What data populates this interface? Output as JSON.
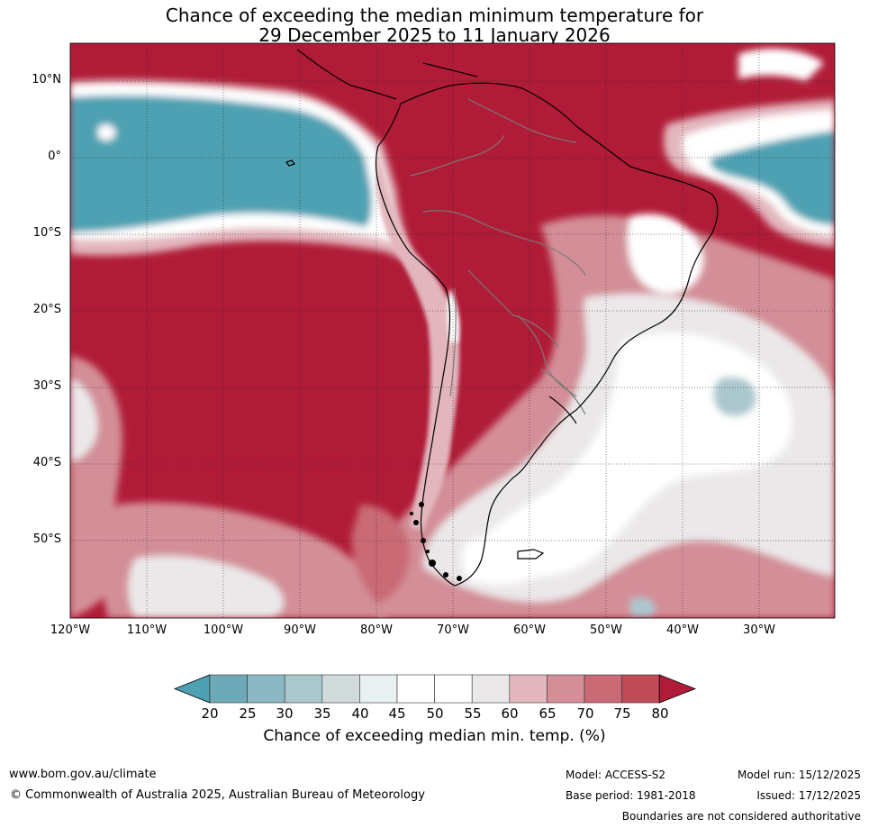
{
  "title": {
    "line1": "Chance of exceeding the median minimum temperature for",
    "line2": "29 December 2025 to 11 January 2026"
  },
  "map": {
    "extent": {
      "lon_min": -120,
      "lon_max": -20,
      "lat_min": -60,
      "lat_max": 15
    },
    "lat_labels": [
      "10°N",
      "0°",
      "10°S",
      "20°S",
      "30°S",
      "40°S",
      "50°S"
    ],
    "lon_labels": [
      "120°W",
      "110°W",
      "100°W",
      "90°W",
      "80°W",
      "70°W",
      "60°W",
      "50°W",
      "40°W",
      "30°W"
    ],
    "background_color": "#b01c37",
    "gridlines": true
  },
  "colorbar": {
    "colors": [
      "#4da1b3",
      "#6ea9b8",
      "#8cb8c6",
      "#abc7ce",
      "#d2dbdb",
      "#e9f0f2",
      "#ffffff",
      "#ffffff",
      "#ebe8e9",
      "#e3b6bd",
      "#d38e97",
      "#c96a75",
      "#bf4a58",
      "#b01c37"
    ],
    "ticks": [
      "20",
      "25",
      "30",
      "35",
      "40",
      "45",
      "50",
      "55",
      "60",
      "65",
      "70",
      "75",
      "80"
    ],
    "label": "Chance of exceeding median min. temp. (%)"
  },
  "footer": {
    "url": "www.bom.gov.au/climate",
    "copyright": "© Commonwealth of Australia 2025, Australian Bureau of Meteorology",
    "model": "Model: ACCESS-S2",
    "base_period": "Base period: 1981-2018",
    "model_run": "Model run: 15/12/2025",
    "issued": "Issued: 17/12/2025",
    "disclaimer": "Boundaries are not considered authoritative"
  }
}
